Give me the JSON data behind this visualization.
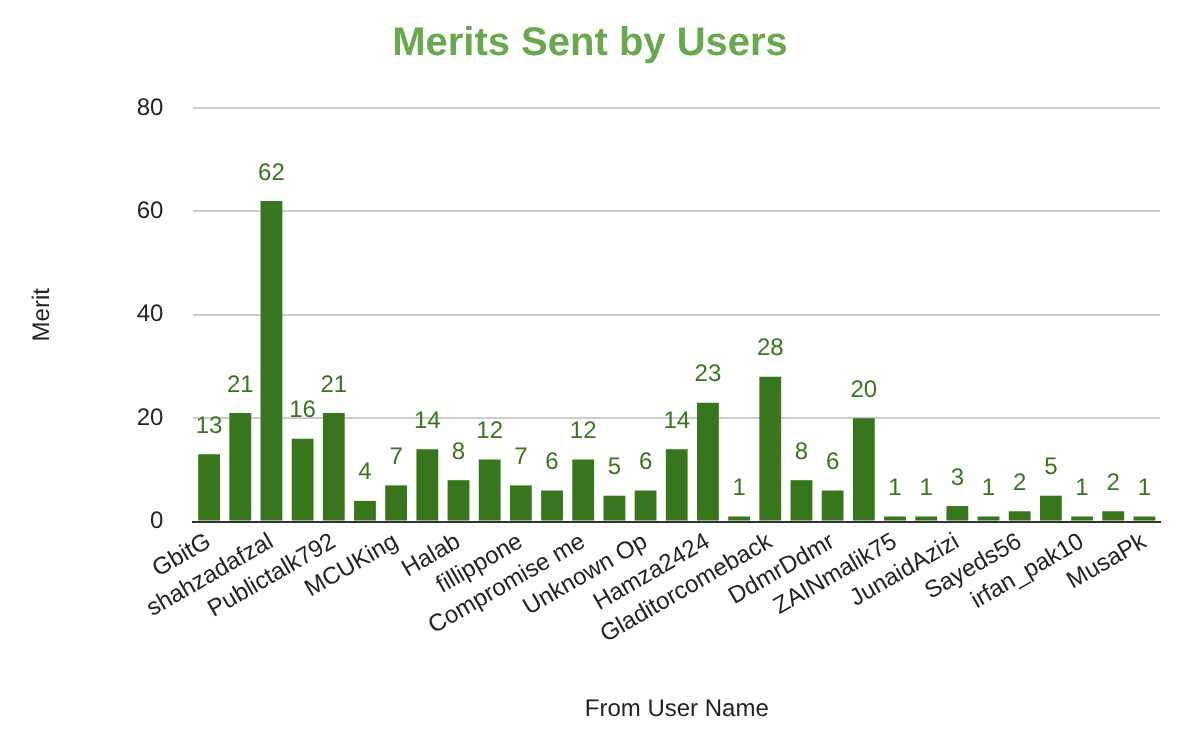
{
  "chart_data": {
    "type": "bar",
    "title": "Merits Sent by Users",
    "xlabel": "From User Name",
    "ylabel": "Merit",
    "categories": [
      "GbitG",
      null,
      "shahzadafzal",
      null,
      "Publictalk792",
      null,
      "MCUKing",
      null,
      "Halab",
      null,
      "fillippone",
      null,
      "Compromise me",
      null,
      "Unknown Op",
      null,
      "Hamza2424",
      null,
      "Gladitorcomeback",
      null,
      "DdmrDdmr",
      null,
      "ZAINmalik75",
      null,
      "JunaidAzizi",
      null,
      "Sayeds56",
      null,
      "irfan_pak10",
      null,
      "MusaPk"
    ],
    "values": [
      13,
      21,
      62,
      16,
      21,
      4,
      7,
      14,
      8,
      12,
      7,
      6,
      12,
      5,
      6,
      14,
      23,
      1,
      28,
      8,
      6,
      20,
      1,
      1,
      3,
      1,
      2,
      5,
      1,
      2,
      1
    ],
    "color": "#38761d",
    "ylim": [
      0,
      80
    ],
    "yticks": [
      0,
      20,
      40,
      60,
      80
    ],
    "grid": "y",
    "data_labels": true,
    "legend": false
  }
}
